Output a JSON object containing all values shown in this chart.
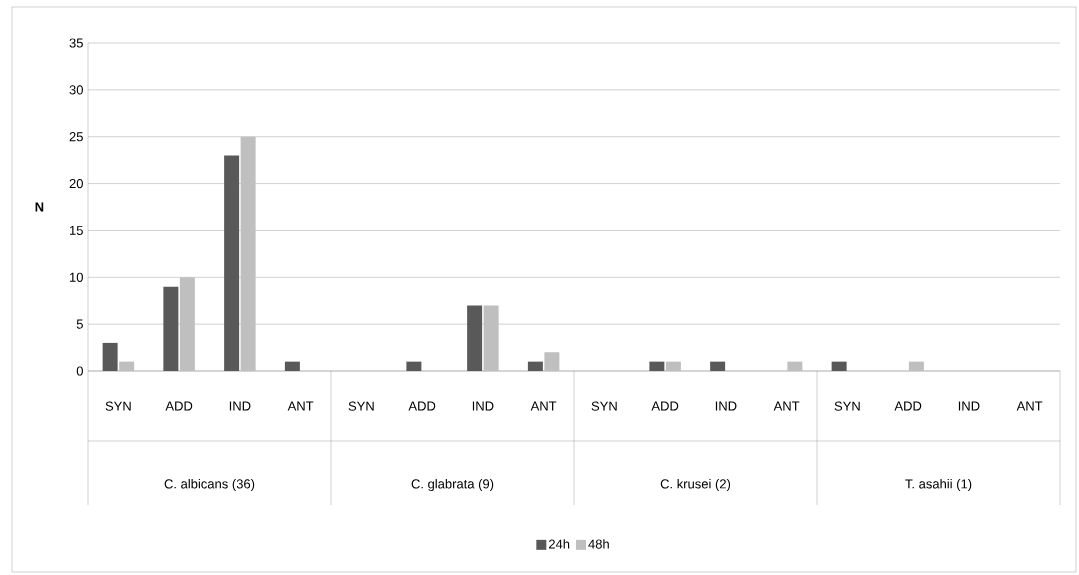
{
  "chart_data": {
    "type": "bar",
    "ylabel": "N",
    "categories": [
      "SYN",
      "ADD",
      "IND",
      "ANT",
      "SYN",
      "ADD",
      "IND",
      "ANT",
      "SYN",
      "ADD",
      "IND",
      "ANT",
      "SYN",
      "ADD",
      "IND",
      "ANT"
    ],
    "annotations": [
      "C. albicans (36)",
      "C. glabrata (9)",
      "C. krusei (2)",
      "T. asahii (1)"
    ],
    "series": [
      {
        "name": "24h",
        "color": "#595959",
        "values": [
          3,
          9,
          23,
          1,
          0,
          1,
          7,
          1,
          0,
          1,
          1,
          0,
          1,
          0,
          0,
          0
        ]
      },
      {
        "name": "48h",
        "color": "#bfbfbf",
        "values": [
          1,
          10,
          25,
          0,
          0,
          0,
          7,
          2,
          0,
          1,
          0,
          1,
          0,
          1,
          0,
          0
        ]
      }
    ],
    "ylim": [
      0,
      35
    ],
    "yticks": [
      0,
      5,
      10,
      15,
      20,
      25,
      30,
      35
    ],
    "grid": "y",
    "legend": "bottom"
  }
}
